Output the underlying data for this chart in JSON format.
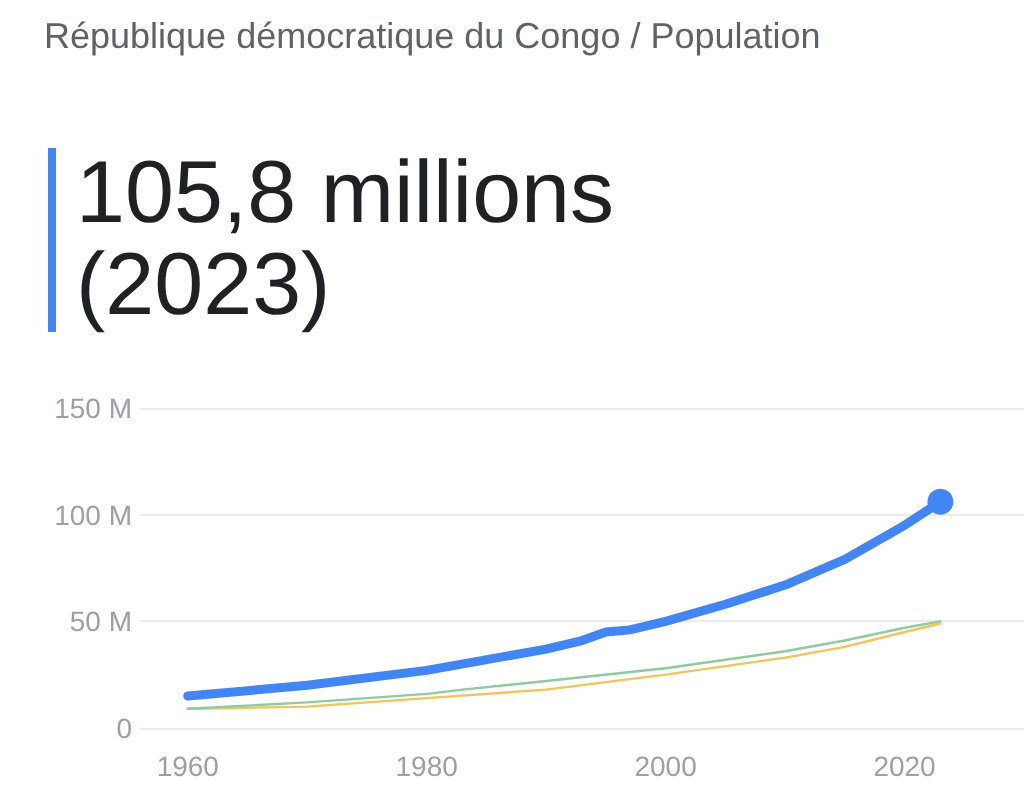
{
  "chart_data": {
    "type": "line",
    "title": "République démocratique du Congo / Population",
    "annotations": [
      "105,8 millions (2023)"
    ],
    "series": [
      {
        "color": "#4285f4",
        "x": [
          1960,
          1970,
          1980,
          1990,
          1993,
          1995,
          1997,
          2000,
          2005,
          2010,
          2015,
          2020,
          2023
        ],
        "values": [
          15,
          20,
          27,
          37,
          41,
          45,
          46,
          50,
          58,
          67,
          79,
          95,
          106
        ]
      },
      {
        "color": "#93c9a0",
        "x": [
          1960,
          1970,
          1980,
          1983,
          1990,
          2000,
          2010,
          2015,
          2020,
          2023
        ],
        "values": [
          9,
          12,
          16,
          18,
          22,
          28,
          36,
          41,
          47,
          50
        ]
      },
      {
        "color": "#f2c45a",
        "x": [
          1960,
          1970,
          1980,
          1990,
          2000,
          2010,
          2015,
          2020,
          2023
        ],
        "values": [
          9,
          10,
          14,
          18,
          25,
          33,
          38,
          45,
          49
        ]
      }
    ],
    "xlim": [
      1956,
      2030
    ],
    "xticks": [
      1960,
      1980,
      2000,
      2020
    ],
    "ylim": [
      0,
      150
    ],
    "yticks": [
      {
        "value": 0,
        "label": "0"
      },
      {
        "value": 50,
        "label": "50 M"
      },
      {
        "value": 100,
        "label": "100 M"
      },
      {
        "value": 150,
        "label": "150 M"
      }
    ],
    "grid": "y"
  }
}
